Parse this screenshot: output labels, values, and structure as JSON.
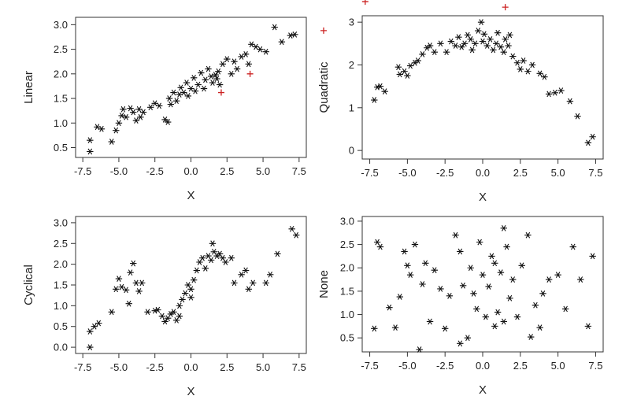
{
  "chart_data": [
    {
      "type": "scatter",
      "xlabel": "X",
      "ylabel": "Linear",
      "xlim": [
        -8,
        8
      ],
      "ylim": [
        0.3,
        3.15
      ],
      "xticks": [
        "-7.5",
        "-5.0",
        "-2.5",
        "0.0",
        "2.5",
        "5.0",
        "7.5"
      ],
      "yticks": [
        "0.5",
        "1.0",
        "1.5",
        "2.0",
        "2.5",
        "3.0"
      ],
      "marker": "asterisk",
      "points": [
        [
          -7.0,
          0.42
        ],
        [
          -7.0,
          0.65
        ],
        [
          -6.5,
          0.92
        ],
        [
          -6.2,
          0.88
        ],
        [
          -5.5,
          0.62
        ],
        [
          -5.2,
          0.85
        ],
        [
          -5.0,
          1.0
        ],
        [
          -4.8,
          1.15
        ],
        [
          -4.7,
          1.28
        ],
        [
          -4.5,
          1.12
        ],
        [
          -4.2,
          1.3
        ],
        [
          -4.0,
          1.22
        ],
        [
          -3.8,
          1.05
        ],
        [
          -3.6,
          1.28
        ],
        [
          -3.5,
          1.12
        ],
        [
          -3.3,
          1.22
        ],
        [
          -2.8,
          1.32
        ],
        [
          -2.5,
          1.4
        ],
        [
          -2.2,
          1.35
        ],
        [
          -1.8,
          1.07
        ],
        [
          -1.6,
          1.02
        ],
        [
          -1.5,
          1.5
        ],
        [
          -1.4,
          1.38
        ],
        [
          -1.2,
          1.62
        ],
        [
          -1.0,
          1.45
        ],
        [
          -0.8,
          1.58
        ],
        [
          -0.7,
          1.72
        ],
        [
          -0.5,
          1.62
        ],
        [
          -0.3,
          1.82
        ],
        [
          -0.2,
          1.55
        ],
        [
          0.0,
          1.7
        ],
        [
          0.2,
          1.92
        ],
        [
          0.3,
          1.65
        ],
        [
          0.5,
          1.78
        ],
        [
          0.7,
          2.02
        ],
        [
          0.9,
          1.7
        ],
        [
          1.0,
          1.88
        ],
        [
          1.2,
          2.1
        ],
        [
          1.4,
          1.95
        ],
        [
          1.5,
          1.82
        ],
        [
          1.7,
          1.98
        ],
        [
          1.8,
          1.9
        ],
        [
          1.9,
          2.05
        ],
        [
          2.0,
          1.78
        ],
        [
          2.2,
          2.2
        ],
        [
          2.5,
          2.3
        ],
        [
          2.8,
          2.0
        ],
        [
          3.0,
          2.25
        ],
        [
          3.2,
          2.1
        ],
        [
          3.5,
          2.35
        ],
        [
          3.8,
          2.4
        ],
        [
          4.0,
          2.2
        ],
        [
          4.2,
          2.6
        ],
        [
          4.5,
          2.55
        ],
        [
          4.8,
          2.5
        ],
        [
          5.2,
          2.45
        ],
        [
          5.8,
          2.95
        ],
        [
          6.3,
          2.65
        ],
        [
          6.9,
          2.78
        ],
        [
          7.2,
          2.8
        ]
      ],
      "outliers": [
        [
          2.1,
          1.62
        ],
        [
          4.1,
          2.0
        ],
        [
          9.2,
          2.88
        ]
      ]
    },
    {
      "type": "scatter",
      "xlabel": "X",
      "ylabel": "Quadratic",
      "xlim": [
        -8,
        8
      ],
      "ylim": [
        -0.2,
        3.15
      ],
      "xticks": [
        "-7.5",
        "-5.0",
        "-2.5",
        "0.0",
        "2.5",
        "5.0",
        "7.5"
      ],
      "yticks": [
        "0",
        "1",
        "2",
        "3"
      ],
      "marker": "asterisk",
      "points": [
        [
          -7.2,
          1.18
        ],
        [
          -7.0,
          1.48
        ],
        [
          -6.8,
          1.5
        ],
        [
          -6.5,
          1.38
        ],
        [
          -5.6,
          1.95
        ],
        [
          -5.5,
          1.78
        ],
        [
          -5.2,
          1.85
        ],
        [
          -5.0,
          1.75
        ],
        [
          -4.8,
          1.98
        ],
        [
          -4.5,
          2.05
        ],
        [
          -4.3,
          2.1
        ],
        [
          -4.0,
          2.25
        ],
        [
          -3.7,
          2.4
        ],
        [
          -3.5,
          2.45
        ],
        [
          -3.2,
          2.3
        ],
        [
          -2.8,
          2.5
        ],
        [
          -2.4,
          2.3
        ],
        [
          -2.1,
          2.55
        ],
        [
          -1.8,
          2.45
        ],
        [
          -1.6,
          2.65
        ],
        [
          -1.4,
          2.42
        ],
        [
          -1.2,
          2.5
        ],
        [
          -1.0,
          2.7
        ],
        [
          -0.8,
          2.6
        ],
        [
          -0.7,
          2.35
        ],
        [
          -0.5,
          2.5
        ],
        [
          -0.3,
          2.8
        ],
        [
          -0.1,
          3.0
        ],
        [
          0.0,
          2.55
        ],
        [
          0.1,
          2.72
        ],
        [
          0.3,
          2.45
        ],
        [
          0.5,
          2.6
        ],
        [
          0.7,
          2.35
        ],
        [
          0.9,
          2.5
        ],
        [
          1.0,
          2.75
        ],
        [
          1.2,
          2.42
        ],
        [
          1.4,
          2.3
        ],
        [
          1.5,
          2.6
        ],
        [
          1.7,
          2.45
        ],
        [
          1.8,
          2.7
        ],
        [
          2.0,
          2.2
        ],
        [
          2.3,
          2.05
        ],
        [
          2.5,
          1.9
        ],
        [
          2.7,
          2.1
        ],
        [
          3.0,
          1.85
        ],
        [
          3.3,
          2.0
        ],
        [
          3.8,
          1.8
        ],
        [
          4.1,
          1.72
        ],
        [
          4.4,
          1.32
        ],
        [
          4.8,
          1.35
        ],
        [
          5.2,
          1.4
        ],
        [
          5.8,
          1.15
        ],
        [
          6.3,
          0.8
        ],
        [
          7.0,
          0.18
        ],
        [
          7.3,
          0.32
        ]
      ],
      "outliers": [
        [
          -7.8,
          3.48
        ],
        [
          1.5,
          3.35
        ]
      ]
    },
    {
      "type": "scatter",
      "xlabel": "X",
      "ylabel": "Cyclical",
      "xlim": [
        -8,
        8
      ],
      "ylim": [
        -0.15,
        3.15
      ],
      "xticks": [
        "-7.5",
        "-5.0",
        "-2.5",
        "0.0",
        "2.5",
        "5.0",
        "7.5"
      ],
      "yticks": [
        "0.0",
        "0.5",
        "1.0",
        "1.5",
        "2.0",
        "2.5",
        "3.0"
      ],
      "marker": "asterisk",
      "points": [
        [
          -7.0,
          0.0
        ],
        [
          -7.0,
          0.38
        ],
        [
          -6.7,
          0.5
        ],
        [
          -6.4,
          0.58
        ],
        [
          -5.5,
          0.85
        ],
        [
          -5.2,
          1.4
        ],
        [
          -5.0,
          1.65
        ],
        [
          -4.8,
          1.45
        ],
        [
          -4.5,
          1.38
        ],
        [
          -4.3,
          1.05
        ],
        [
          -4.2,
          1.8
        ],
        [
          -4.0,
          2.02
        ],
        [
          -3.8,
          1.55
        ],
        [
          -3.6,
          1.35
        ],
        [
          -3.4,
          1.55
        ],
        [
          -3.0,
          0.85
        ],
        [
          -2.5,
          0.88
        ],
        [
          -2.3,
          0.9
        ],
        [
          -2.0,
          0.75
        ],
        [
          -1.8,
          0.62
        ],
        [
          -1.6,
          0.7
        ],
        [
          -1.4,
          0.8
        ],
        [
          -1.2,
          0.85
        ],
        [
          -1.0,
          0.65
        ],
        [
          -0.8,
          1.0
        ],
        [
          -0.6,
          1.15
        ],
        [
          -0.4,
          1.3
        ],
        [
          -0.2,
          1.5
        ],
        [
          0.0,
          1.4
        ],
        [
          0.2,
          1.62
        ],
        [
          0.4,
          1.85
        ],
        [
          0.6,
          2.05
        ],
        [
          0.8,
          2.15
        ],
        [
          1.0,
          1.9
        ],
        [
          1.2,
          2.2
        ],
        [
          1.4,
          2.1
        ],
        [
          1.6,
          2.3
        ],
        [
          1.8,
          2.2
        ],
        [
          2.0,
          2.25
        ],
        [
          2.2,
          2.15
        ],
        [
          2.4,
          2.05
        ],
        [
          2.8,
          2.15
        ],
        [
          3.0,
          1.55
        ],
        [
          3.5,
          1.75
        ],
        [
          3.8,
          1.85
        ],
        [
          4.0,
          1.4
        ],
        [
          4.3,
          1.55
        ],
        [
          5.2,
          1.55
        ],
        [
          5.5,
          1.75
        ],
        [
          6.0,
          2.25
        ],
        [
          7.0,
          2.85
        ],
        [
          7.3,
          2.7
        ],
        [
          1.5,
          2.5
        ],
        [
          -0.8,
          0.75
        ],
        [
          0.0,
          1.2
        ]
      ],
      "outliers": []
    },
    {
      "type": "scatter",
      "xlabel": "X",
      "ylabel": "None",
      "xlim": [
        -8,
        8
      ],
      "ylim": [
        0.2,
        3.1
      ],
      "xticks": [
        "-7.5",
        "-5.0",
        "-2.5",
        "0.0",
        "2.5",
        "5.0",
        "7.5"
      ],
      "yticks": [
        "0.5",
        "1.0",
        "1.5",
        "2.0",
        "2.5",
        "3.0"
      ],
      "marker": "asterisk",
      "points": [
        [
          -7.2,
          0.7
        ],
        [
          -7.0,
          2.55
        ],
        [
          -6.8,
          2.45
        ],
        [
          -6.2,
          1.15
        ],
        [
          -5.8,
          0.72
        ],
        [
          -5.5,
          1.38
        ],
        [
          -5.2,
          2.35
        ],
        [
          -5.0,
          2.05
        ],
        [
          -4.8,
          1.85
        ],
        [
          -4.5,
          2.5
        ],
        [
          -4.2,
          0.25
        ],
        [
          -4.0,
          1.65
        ],
        [
          -3.8,
          2.1
        ],
        [
          -3.5,
          0.85
        ],
        [
          -3.2,
          1.95
        ],
        [
          -2.8,
          1.55
        ],
        [
          -2.5,
          0.7
        ],
        [
          -2.2,
          1.4
        ],
        [
          -1.8,
          2.7
        ],
        [
          -1.5,
          2.35
        ],
        [
          -1.3,
          1.62
        ],
        [
          -1.0,
          0.5
        ],
        [
          -0.8,
          2.0
        ],
        [
          -0.6,
          1.45
        ],
        [
          -0.4,
          1.12
        ],
        [
          -0.2,
          2.55
        ],
        [
          0.0,
          1.85
        ],
        [
          0.2,
          0.95
        ],
        [
          0.4,
          1.6
        ],
        [
          0.6,
          2.25
        ],
        [
          0.8,
          0.75
        ],
        [
          1.0,
          1.05
        ],
        [
          1.2,
          1.9
        ],
        [
          1.4,
          0.85
        ],
        [
          1.6,
          2.45
        ],
        [
          1.8,
          1.35
        ],
        [
          2.0,
          1.75
        ],
        [
          2.3,
          0.95
        ],
        [
          2.6,
          2.05
        ],
        [
          3.0,
          2.7
        ],
        [
          3.2,
          0.52
        ],
        [
          3.5,
          1.2
        ],
        [
          3.8,
          0.72
        ],
        [
          4.0,
          1.45
        ],
        [
          4.4,
          1.75
        ],
        [
          5.0,
          1.85
        ],
        [
          5.5,
          1.12
        ],
        [
          6.0,
          2.45
        ],
        [
          6.5,
          1.75
        ],
        [
          7.0,
          0.75
        ],
        [
          7.3,
          2.25
        ],
        [
          -1.5,
          0.38
        ],
        [
          0.8,
          2.1
        ],
        [
          1.4,
          2.85
        ]
      ],
      "outliers": []
    }
  ]
}
